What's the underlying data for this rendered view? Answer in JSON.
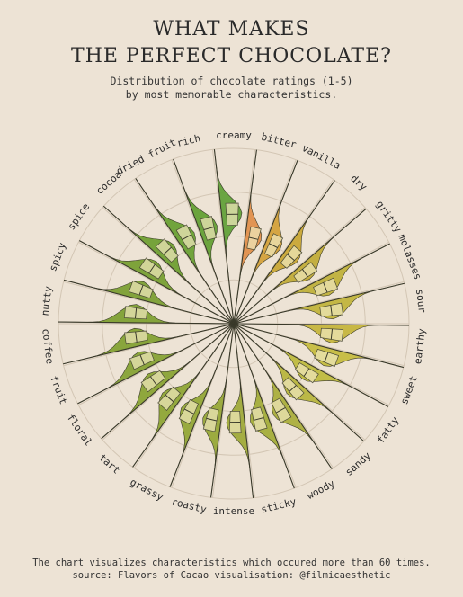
{
  "title_line1": "WHAT MAKES",
  "title_line2": "THE PERFECT CHOCOLATE?",
  "subtitle_line1": "Distribution of chocolate ratings (1-5)",
  "subtitle_line2": "by most memorable characteristics.",
  "footer_line1": "The chart visualizes characteristics which occured more than 60 times.",
  "footer_line2": "source: Flavors of Cacao  visualisation: @filmicaesthetic",
  "chart_data": {
    "type": "radial violin + boxplot",
    "scale_range": [
      1,
      5
    ],
    "grid": true,
    "categories": [
      {
        "name": "creamy",
        "q1": 3.25,
        "median": 3.5,
        "q3": 3.75,
        "color": "#63a13a"
      },
      {
        "name": "bitter",
        "q1": 2.75,
        "median": 3.0,
        "q3": 3.25,
        "color": "#e08f4c"
      },
      {
        "name": "vanilla",
        "q1": 2.75,
        "median": 3.0,
        "q3": 3.25,
        "color": "#d4a13b"
      },
      {
        "name": "dry",
        "q1": 2.75,
        "median": 3.0,
        "q3": 3.25,
        "color": "#c9a636"
      },
      {
        "name": "gritty",
        "q1": 2.75,
        "median": 3.0,
        "q3": 3.25,
        "color": "#c2ac39"
      },
      {
        "name": "molasses",
        "q1": 3.0,
        "median": 3.25,
        "q3": 3.5,
        "color": "#c0b13c"
      },
      {
        "name": "sour",
        "q1": 3.0,
        "median": 3.25,
        "q3": 3.5,
        "color": "#c2b43d"
      },
      {
        "name": "earthy",
        "q1": 3.0,
        "median": 3.25,
        "q3": 3.5,
        "color": "#c6b53e"
      },
      {
        "name": "sweet",
        "q1": 3.0,
        "median": 3.25,
        "q3": 3.5,
        "color": "#c6bc40"
      },
      {
        "name": "fatty",
        "q1": 2.75,
        "median": 3.0,
        "q3": 3.25,
        "color": "#bfba3f"
      },
      {
        "name": "sandy",
        "q1": 2.75,
        "median": 3.0,
        "q3": 3.25,
        "color": "#b8b53f"
      },
      {
        "name": "woody",
        "q1": 3.0,
        "median": 3.25,
        "q3": 3.5,
        "color": "#abae3d"
      },
      {
        "name": "sticky",
        "q1": 3.0,
        "median": 3.25,
        "q3": 3.5,
        "color": "#a4ad3b"
      },
      {
        "name": "intense",
        "q1": 3.0,
        "median": 3.25,
        "q3": 3.5,
        "color": "#a0aa3a"
      },
      {
        "name": "roasty",
        "q1": 3.0,
        "median": 3.25,
        "q3": 3.5,
        "color": "#98a838"
      },
      {
        "name": "grassy",
        "q1": 3.0,
        "median": 3.25,
        "q3": 3.5,
        "color": "#93a637"
      },
      {
        "name": "tart",
        "q1": 3.0,
        "median": 3.25,
        "q3": 3.5,
        "color": "#8fa536"
      },
      {
        "name": "floral",
        "q1": 3.0,
        "median": 3.25,
        "q3": 3.5,
        "color": "#8aa335"
      },
      {
        "name": "fruit",
        "q1": 3.0,
        "median": 3.25,
        "q3": 3.5,
        "color": "#87a235"
      },
      {
        "name": "coffee",
        "q1": 3.0,
        "median": 3.25,
        "q3": 3.5,
        "color": "#84a134"
      },
      {
        "name": "nutty",
        "q1": 3.0,
        "median": 3.25,
        "q3": 3.5,
        "color": "#80a034"
      },
      {
        "name": "spicy",
        "q1": 3.0,
        "median": 3.25,
        "q3": 3.5,
        "color": "#7c9f34"
      },
      {
        "name": "spice",
        "q1": 3.0,
        "median": 3.25,
        "q3": 3.5,
        "color": "#789f33"
      },
      {
        "name": "cocoa",
        "q1": 3.0,
        "median": 3.25,
        "q3": 3.5,
        "color": "#709f33"
      },
      {
        "name": "dried fruit",
        "q1": 3.0,
        "median": 3.25,
        "q3": 3.5,
        "color": "#6aa034"
      },
      {
        "name": "rich",
        "q1": 3.0,
        "median": 3.25,
        "q3": 3.5,
        "color": "#64a035"
      }
    ]
  }
}
